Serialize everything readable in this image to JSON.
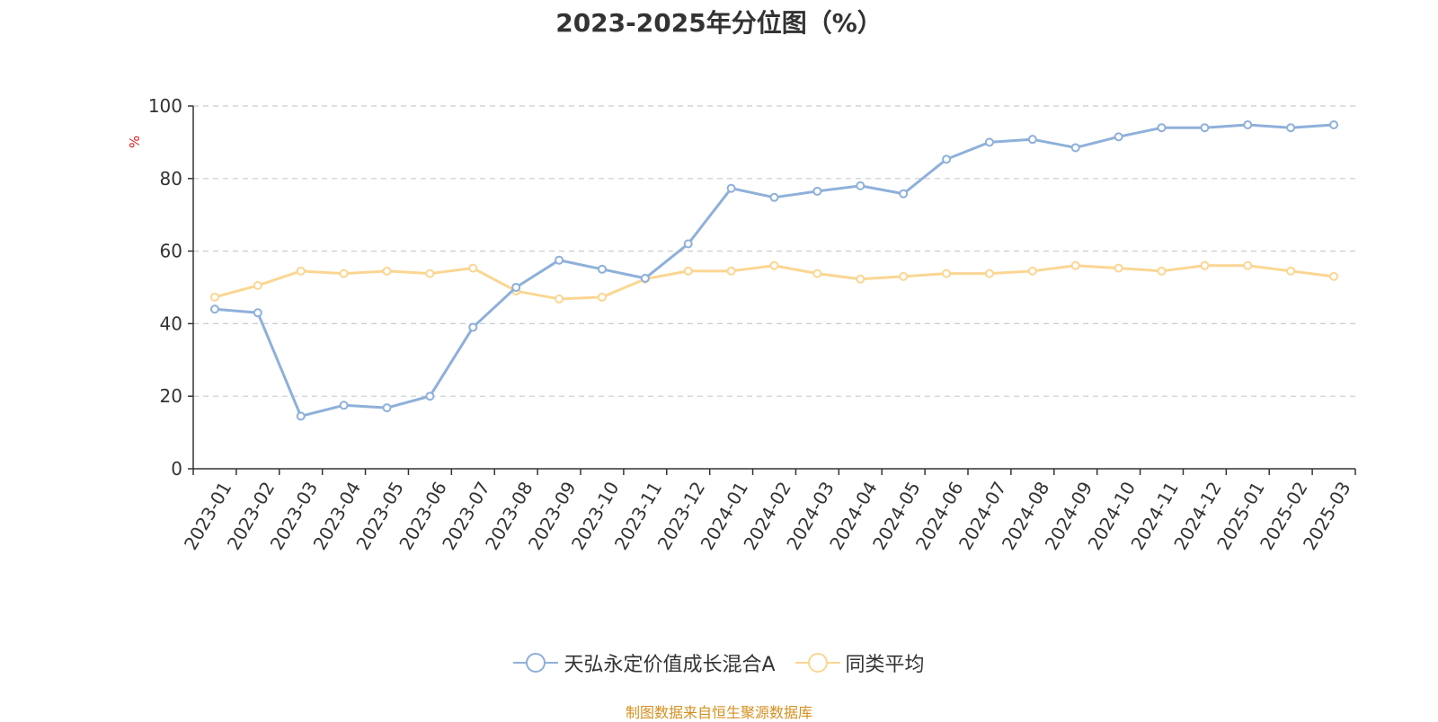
{
  "title": "2023-2025年分位图（%）",
  "source_note": "制图数据来自恒生聚源数据库",
  "chart_data": {
    "type": "line",
    "title": "2023-2025年分位图（%）",
    "ylabel": "%",
    "ylim": [
      0,
      100
    ],
    "yticks": [
      0,
      20,
      40,
      60,
      80,
      100
    ],
    "grid": true,
    "legend_position": "bottom",
    "categories": [
      "2023-01",
      "2023-02",
      "2023-03",
      "2023-04",
      "2023-05",
      "2023-06",
      "2023-07",
      "2023-08",
      "2023-09",
      "2023-10",
      "2023-11",
      "2023-12",
      "2024-01",
      "2024-02",
      "2024-03",
      "2024-04",
      "2024-05",
      "2024-06",
      "2024-07",
      "2024-08",
      "2024-09",
      "2024-10",
      "2024-11",
      "2024-12",
      "2025-01",
      "2025-02",
      "2025-03"
    ],
    "series": [
      {
        "name": "天弘永定价值成长混合A",
        "color": "#8eb0da",
        "values": [
          44,
          43,
          14.5,
          17.5,
          16.8,
          20,
          39,
          50,
          57.5,
          55,
          52.5,
          62,
          77.3,
          74.8,
          76.5,
          78,
          75.8,
          85.3,
          90,
          90.8,
          88.5,
          91.5,
          94,
          94,
          94.8,
          94,
          94.8
        ]
      },
      {
        "name": "同类平均",
        "color": "#fbd692",
        "values": [
          47.3,
          50.5,
          54.5,
          53.8,
          54.5,
          53.8,
          55.3,
          49,
          46.8,
          47.3,
          52.3,
          54.5,
          54.5,
          56,
          53.8,
          52.3,
          53,
          53.8,
          53.8,
          54.5,
          56,
          55.3,
          54.5,
          56,
          56,
          54.5,
          53
        ]
      }
    ]
  }
}
